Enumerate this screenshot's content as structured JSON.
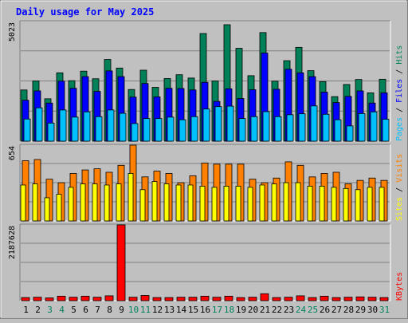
{
  "chart_data": {
    "type": "bar",
    "title": "Daily usage for May 2025",
    "categories": [
      "1",
      "2",
      "3",
      "4",
      "5",
      "6",
      "7",
      "8",
      "9",
      "10",
      "11",
      "12",
      "13",
      "14",
      "15",
      "16",
      "17",
      "18",
      "19",
      "20",
      "21",
      "22",
      "23",
      "24",
      "25",
      "26",
      "27",
      "28",
      "29",
      "30",
      "31"
    ],
    "weekend_days": [
      "3",
      "4",
      "10",
      "11",
      "17",
      "18",
      "24",
      "25",
      "31"
    ],
    "panels": [
      {
        "id": "hits-panel",
        "ymax": 5023,
        "ymax_label": "5023",
        "legend": [
          "Pages",
          "Files",
          "Hits"
        ],
        "series": [
          {
            "name": "Hits",
            "color": "#008058",
            "values": [
              2150,
              2530,
              1780,
              2870,
              2540,
              2940,
              2620,
              3430,
              3070,
              2170,
              2980,
              2260,
              2630,
              2790,
              2650,
              4520,
              2530,
              4890,
              3900,
              2750,
              4560,
              2520,
              3380,
              3940,
              2960,
              2500,
              1870,
              2380,
              2590,
              2030,
              2600
            ]
          },
          {
            "name": "Files",
            "color": "#0000ff",
            "values": [
              1720,
              2110,
              1600,
              2520,
              2220,
              2710,
              2090,
              2950,
              2710,
              1850,
              2420,
              1860,
              2220,
              2210,
              2150,
              2470,
              1670,
              2200,
              1790,
              2160,
              3700,
              2180,
              3020,
              2870,
              2710,
              2060,
              1620,
              1880,
              2110,
              1600,
              2030
            ]
          },
          {
            "name": "Pages",
            "color": "#00c0ff",
            "values": [
              930,
              1400,
              760,
              1310,
              1010,
              1230,
              1030,
              1310,
              1170,
              740,
              950,
              950,
              1010,
              900,
              1030,
              1350,
              1450,
              1470,
              950,
              1030,
              1240,
              1030,
              1110,
              1150,
              1480,
              1130,
              900,
              640,
              1160,
              1230,
              920
            ]
          }
        ]
      },
      {
        "id": "visits-panel",
        "ymax": 654,
        "ymax_label": "654",
        "legend": [
          "Sites",
          "Visits"
        ],
        "series": [
          {
            "name": "Visits",
            "color": "#ff8000",
            "values": [
              520,
              530,
              360,
              330,
              410,
              440,
              450,
              420,
              480,
              654,
              380,
              430,
              410,
              330,
              390,
              500,
              490,
              490,
              490,
              360,
              330,
              370,
              510,
              480,
              380,
              410,
              420,
              320,
              350,
              370,
              350
            ]
          },
          {
            "name": "Sites",
            "color": "#ffff00",
            "values": [
              310,
              320,
              200,
              230,
              290,
              320,
              320,
              310,
              320,
              410,
              270,
              340,
              320,
              310,
              310,
              300,
              290,
              300,
              300,
              290,
              310,
              320,
              330,
              330,
              300,
              300,
              290,
              280,
              270,
              290,
              290
            ]
          }
        ]
      },
      {
        "id": "kbytes-panel",
        "ymax": 2187628,
        "ymax_label": "2187628",
        "legend": [
          "KBytes"
        ],
        "series": [
          {
            "name": "KBytes",
            "color": "#ff0000",
            "values": [
              90000,
              100000,
              80000,
              130000,
              100000,
              130000,
              100000,
              140000,
              2187628,
              100000,
              150000,
              90000,
              90000,
              100000,
              100000,
              130000,
              100000,
              130000,
              90000,
              100000,
              200000,
              90000,
              100000,
              140000,
              90000,
              130000,
              90000,
              100000,
              110000,
              100000,
              90000
            ]
          }
        ]
      }
    ]
  },
  "colors": {
    "title": "#0000ff",
    "axis_label": "#000000",
    "weekday_label": "#000000",
    "weekend_label": "#00805c",
    "panel_bg": "#c0c0c0",
    "gridline": "#808080",
    "legend_sep": "#000000"
  }
}
